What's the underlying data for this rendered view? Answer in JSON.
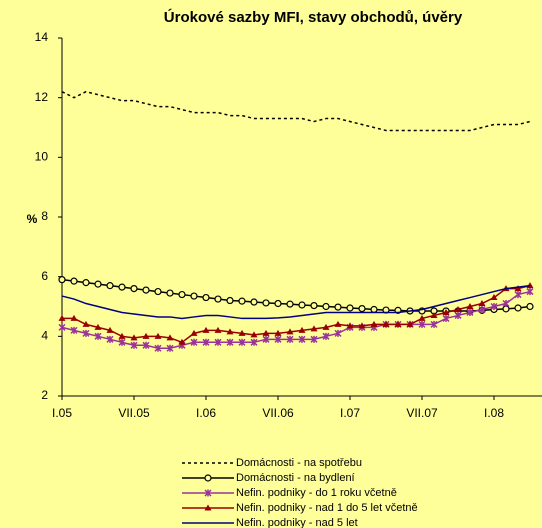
{
  "chart_data": {
    "type": "line",
    "title": "Úrokové sazby MFI, stavy obchodů, úvěry",
    "ylabel": "%",
    "categories": [
      "I.05",
      null,
      null,
      null,
      null,
      null,
      "VII.05",
      null,
      null,
      null,
      null,
      null,
      "I.06",
      null,
      null,
      null,
      null,
      null,
      "VII.06",
      null,
      null,
      null,
      null,
      null,
      "I.07",
      null,
      null,
      null,
      null,
      null,
      "VII.07",
      null,
      null,
      null,
      null,
      null,
      "I.08",
      null,
      null,
      null
    ],
    "ylim": [
      2,
      14
    ],
    "yticks": [
      2,
      4,
      6,
      8,
      10,
      12,
      14
    ],
    "grid": false,
    "legend": "bottom",
    "series": [
      {
        "name": "Domácnosti - na spotřebu",
        "color": "#000000",
        "dash": true,
        "marker": "none",
        "values": [
          12.2,
          12.0,
          12.2,
          12.1,
          12.0,
          11.9,
          11.9,
          11.8,
          11.7,
          11.7,
          11.6,
          11.5,
          11.5,
          11.5,
          11.4,
          11.4,
          11.3,
          11.3,
          11.3,
          11.3,
          11.3,
          11.2,
          11.3,
          11.3,
          11.2,
          11.1,
          11.0,
          10.9,
          10.9,
          10.9,
          10.9,
          10.9,
          10.9,
          10.9,
          10.9,
          11.0,
          11.1,
          11.1,
          11.1,
          11.2
        ]
      },
      {
        "name": "Domácnosti - na bydlení",
        "color": "#000000",
        "dash": false,
        "marker": "circle",
        "values": [
          5.9,
          5.85,
          5.8,
          5.75,
          5.7,
          5.65,
          5.6,
          5.55,
          5.5,
          5.45,
          5.4,
          5.35,
          5.3,
          5.25,
          5.2,
          5.18,
          5.15,
          5.12,
          5.1,
          5.08,
          5.05,
          5.03,
          5.0,
          4.98,
          4.95,
          4.93,
          4.9,
          4.88,
          4.87,
          4.85,
          4.85,
          4.85,
          4.85,
          4.85,
          4.85,
          4.87,
          4.9,
          4.92,
          4.95,
          5.0
        ]
      },
      {
        "name": "Nefin. podniky - do 1 roku včetně",
        "color": "#993399",
        "dash": false,
        "marker": "star",
        "values": [
          4.3,
          4.2,
          4.1,
          4.0,
          3.9,
          3.8,
          3.7,
          3.7,
          3.6,
          3.6,
          3.7,
          3.8,
          3.8,
          3.8,
          3.8,
          3.8,
          3.8,
          3.9,
          3.9,
          3.9,
          3.9,
          3.9,
          4.0,
          4.1,
          4.3,
          4.3,
          4.3,
          4.4,
          4.4,
          4.4,
          4.4,
          4.4,
          4.6,
          4.7,
          4.8,
          4.9,
          5.0,
          5.1,
          5.4,
          5.5
        ]
      },
      {
        "name": "Nefin. podniky - nad 1 do 5 let včetně",
        "color": "#990000",
        "dash": false,
        "marker": "triangle",
        "values": [
          4.6,
          4.6,
          4.4,
          4.3,
          4.2,
          4.0,
          3.95,
          4.0,
          4.0,
          3.95,
          3.8,
          4.1,
          4.2,
          4.2,
          4.15,
          4.1,
          4.05,
          4.1,
          4.1,
          4.15,
          4.2,
          4.25,
          4.3,
          4.4,
          4.35,
          4.35,
          4.4,
          4.4,
          4.4,
          4.4,
          4.6,
          4.7,
          4.8,
          4.9,
          5.0,
          5.1,
          5.3,
          5.6,
          5.6,
          5.7
        ]
      },
      {
        "name": "Nefin. podniky - nad 5 let",
        "color": "#000080",
        "dash": false,
        "marker": "none",
        "values": [
          5.35,
          5.25,
          5.1,
          5.0,
          4.9,
          4.8,
          4.75,
          4.7,
          4.65,
          4.65,
          4.6,
          4.65,
          4.7,
          4.7,
          4.65,
          4.6,
          4.6,
          4.6,
          4.62,
          4.65,
          4.7,
          4.75,
          4.8,
          4.8,
          4.8,
          4.8,
          4.8,
          4.8,
          4.8,
          4.85,
          4.9,
          5.0,
          5.1,
          5.2,
          5.3,
          5.4,
          5.5,
          5.6,
          5.65,
          5.7
        ]
      }
    ]
  }
}
